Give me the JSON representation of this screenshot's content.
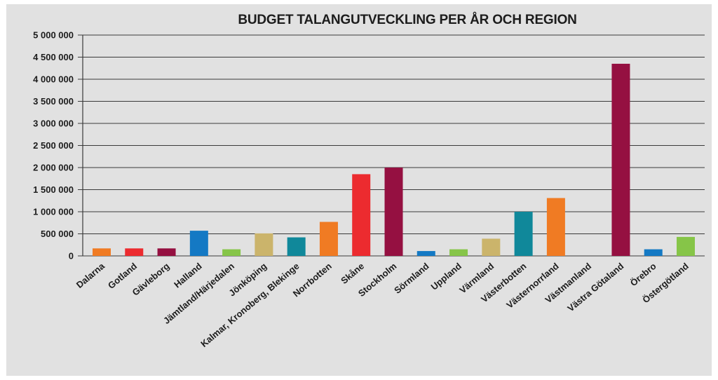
{
  "chart_data": {
    "type": "bar",
    "title": "BUDGET TALANGUTVECKLING PER ÅR OCH REGION",
    "xlabel": "",
    "ylabel": "",
    "ylim": [
      0,
      5000000
    ],
    "yticks": [
      0,
      500000,
      1000000,
      1500000,
      2000000,
      2500000,
      3000000,
      3500000,
      4000000,
      4500000,
      5000000
    ],
    "ytick_labels": [
      "0",
      "500 000",
      "1 000 000",
      "1 500 000",
      "2 000 000",
      "2 500 000",
      "3 000 000",
      "3 500 000",
      "4 000 000",
      "4 500 000",
      "5 000 000"
    ],
    "grid": true,
    "categories": [
      "Dalarna",
      "Gotland",
      "Gävleborg",
      "Halland",
      "Jämtland/Härjedalen",
      "Jönköping",
      "Kalmar, Kronoberg, Blekinge",
      "Norrbotten",
      "Skåne",
      "Stockholm",
      "Sörmland",
      "Uppland",
      "Värmland",
      "Västerbotten",
      "Västernorrland",
      "Västmanland",
      "Västra Götaland",
      "Örebro",
      "Östergötland"
    ],
    "values": [
      170000,
      170000,
      170000,
      570000,
      150000,
      510000,
      420000,
      770000,
      1850000,
      2000000,
      110000,
      150000,
      390000,
      1000000,
      1310000,
      0,
      4350000,
      150000,
      430000
    ],
    "colors": [
      "#f07b23",
      "#ec2b2f",
      "#951041",
      "#1479c4",
      "#86c548",
      "#cbb46b",
      "#10889a",
      "#f07b23",
      "#ec2b2f",
      "#951041",
      "#1479c4",
      "#86c548",
      "#cbb46b",
      "#10889a",
      "#f07b23",
      "#ec2b2f",
      "#951041",
      "#1479c4",
      "#86c548"
    ]
  }
}
